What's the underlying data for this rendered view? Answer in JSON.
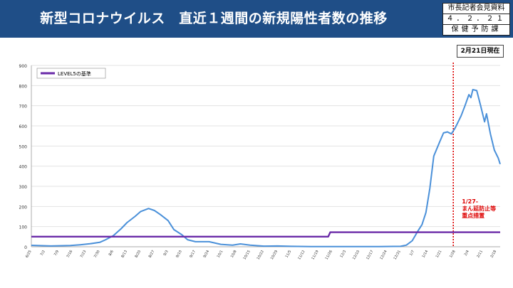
{
  "header": {
    "title": "新型コロナウイルス　直近１週間の新規陽性者数の推移",
    "stamp_line1": "市長記者会見資料",
    "stamp_line2": "４．２．２１",
    "stamp_line3": "保健予防課",
    "header_color": "#1f4e87"
  },
  "chart_data": {
    "type": "line",
    "as_of_label": "2月21日現在",
    "ylim": [
      0,
      900
    ],
    "yticks": [
      "0",
      "100",
      "200",
      "300",
      "400",
      "500",
      "600",
      "700",
      "800",
      "900"
    ],
    "x_start": "6/25",
    "x_end": "2/20",
    "x_tick_labels": [
      "6/25",
      "7/2",
      "7/9",
      "7/16",
      "7/23",
      "7/30",
      "8/6",
      "8/13",
      "8/20",
      "8/27",
      "9/3",
      "9/10",
      "9/17",
      "9/24",
      "10/1",
      "10/8",
      "10/15",
      "10/22",
      "10/29",
      "11/5",
      "11/12",
      "11/19",
      "11/26",
      "12/3",
      "12/10",
      "12/17",
      "12/24",
      "12/31",
      "1/7",
      "1/14",
      "1/21",
      "1/28",
      "2/4",
      "2/11",
      "2/18"
    ],
    "series": [
      {
        "name": "",
        "color": "#4a90d9",
        "points": [
          {
            "x": "6/25",
            "y": 7
          },
          {
            "x": "7/5",
            "y": 4
          },
          {
            "x": "7/15",
            "y": 6
          },
          {
            "x": "7/20",
            "y": 10
          },
          {
            "x": "7/25",
            "y": 15
          },
          {
            "x": "7/30",
            "y": 22
          },
          {
            "x": "8/2",
            "y": 35
          },
          {
            "x": "8/6",
            "y": 55
          },
          {
            "x": "8/10",
            "y": 90
          },
          {
            "x": "8/13",
            "y": 120
          },
          {
            "x": "8/17",
            "y": 150
          },
          {
            "x": "8/20",
            "y": 175
          },
          {
            "x": "8/24",
            "y": 190
          },
          {
            "x": "8/27",
            "y": 180
          },
          {
            "x": "8/30",
            "y": 160
          },
          {
            "x": "9/3",
            "y": 130
          },
          {
            "x": "9/6",
            "y": 85
          },
          {
            "x": "9/10",
            "y": 60
          },
          {
            "x": "9/13",
            "y": 35
          },
          {
            "x": "9/17",
            "y": 25
          },
          {
            "x": "9/24",
            "y": 25
          },
          {
            "x": "9/30",
            "y": 12
          },
          {
            "x": "10/6",
            "y": 8
          },
          {
            "x": "10/10",
            "y": 14
          },
          {
            "x": "10/15",
            "y": 8
          },
          {
            "x": "10/22",
            "y": 3
          },
          {
            "x": "10/29",
            "y": 4
          },
          {
            "x": "11/5",
            "y": 2
          },
          {
            "x": "11/15",
            "y": 1
          },
          {
            "x": "12/1",
            "y": 1
          },
          {
            "x": "12/20",
            "y": 1
          },
          {
            "x": "12/31",
            "y": 2
          },
          {
            "x": "1/3",
            "y": 8
          },
          {
            "x": "1/6",
            "y": 30
          },
          {
            "x": "1/9",
            "y": 80
          },
          {
            "x": "1/11",
            "y": 110
          },
          {
            "x": "1/13",
            "y": 170
          },
          {
            "x": "1/15",
            "y": 290
          },
          {
            "x": "1/17",
            "y": 450
          },
          {
            "x": "1/20",
            "y": 520
          },
          {
            "x": "1/22",
            "y": 565
          },
          {
            "x": "1/24",
            "y": 570
          },
          {
            "x": "1/26",
            "y": 560
          },
          {
            "x": "1/28",
            "y": 590
          },
          {
            "x": "1/31",
            "y": 650
          },
          {
            "x": "2/2",
            "y": 700
          },
          {
            "x": "2/4",
            "y": 755
          },
          {
            "x": "2/5",
            "y": 740
          },
          {
            "x": "2/6",
            "y": 780
          },
          {
            "x": "2/8",
            "y": 775
          },
          {
            "x": "2/10",
            "y": 700
          },
          {
            "x": "2/12",
            "y": 620
          },
          {
            "x": "2/13",
            "y": 660
          },
          {
            "x": "2/15",
            "y": 560
          },
          {
            "x": "2/17",
            "y": 480
          },
          {
            "x": "2/19",
            "y": 440
          },
          {
            "x": "2/20",
            "y": 410
          }
        ]
      },
      {
        "name": "LEVEL5の基準",
        "color": "#6a2aa8",
        "points": [
          {
            "x": "6/25",
            "y": 50
          },
          {
            "x": "11/24",
            "y": 50
          },
          {
            "x": "11/25",
            "y": 72
          },
          {
            "x": "2/20",
            "y": 72
          }
        ]
      }
    ],
    "legend": "top-left",
    "annotation": {
      "date": "1/27",
      "lines": [
        "1/27-",
        "まん延防止等",
        "重点措置"
      ],
      "color": "#dd0000"
    }
  }
}
